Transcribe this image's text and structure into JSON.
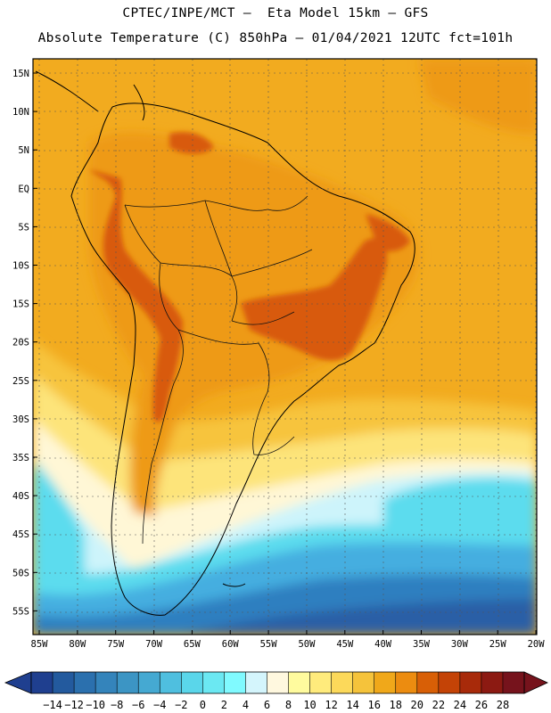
{
  "header": {
    "line1": "CPTEC/INPE/MCT –  Eta Model 15km – GFS",
    "line2": "Absolute Temperature (C) 850hPa – 01/04/2021 12UTC fct=101h"
  },
  "axes": {
    "lat_labels": [
      "15N",
      "10N",
      "5N",
      "EQ",
      "5S",
      "10S",
      "15S",
      "20S",
      "25S",
      "30S",
      "35S",
      "40S",
      "45S",
      "50S",
      "55S"
    ],
    "lon_labels": [
      "85W",
      "80W",
      "75W",
      "70W",
      "65W",
      "60W",
      "55W",
      "50W",
      "45W",
      "40W",
      "35W",
      "30W",
      "25W",
      "20W"
    ]
  },
  "colorbar": {
    "labels": [
      "-14",
      "-12",
      "-10",
      "-8",
      "-6",
      "-4",
      "-2",
      "0",
      "2",
      "4",
      "6",
      "8",
      "10",
      "12",
      "14",
      "16",
      "18",
      "20",
      "22",
      "24",
      "26",
      "28"
    ],
    "colors": [
      "#1f3f8f",
      "#235a9e",
      "#2b70ae",
      "#3484bb",
      "#3c95c4",
      "#45a9d2",
      "#4fbfdf",
      "#5ad6ea",
      "#6be8f2",
      "#80faff",
      "#d4f5fc",
      "#fff8df",
      "#fffb9e",
      "#ffeb7c",
      "#fcd95a",
      "#f5c33b",
      "#f0a81a",
      "#ec8c10",
      "#d85f06",
      "#c44306",
      "#a82a0a",
      "#8c1a12",
      "#76131c"
    ]
  },
  "palette": {
    "hot": "#d85a07",
    "orange": "#ee9a18",
    "amber": "#f2ab1f",
    "gold": "#f7c43c",
    "yellow": "#fde47a",
    "cream": "#fff7d6",
    "pale_cyan": "#cdf4fb",
    "cyan": "#5bdcee",
    "sky": "#45aee0",
    "blue": "#2f7fc0",
    "deep": "#2a5fa6"
  }
}
